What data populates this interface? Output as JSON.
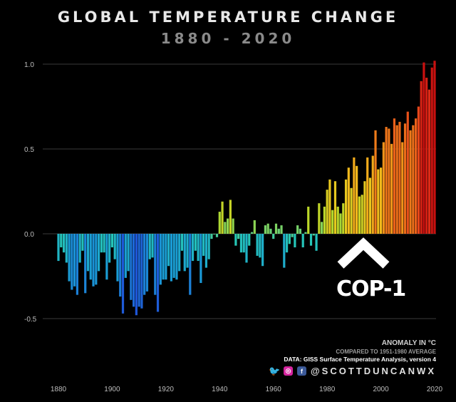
{
  "chart_data": {
    "type": "bar",
    "title": "GLOBAL TEMPERATURE CHANGE",
    "subtitle": "1880 - 2020",
    "y_ticks": [
      "1.0",
      "0.5",
      "0.0",
      "-0.5"
    ],
    "y_tick_values": [
      1.0,
      0.5,
      0.0,
      -0.5
    ],
    "x_ticks": [
      "1880",
      "1900",
      "1920",
      "1940",
      "1960",
      "1980",
      "2000",
      "2020"
    ],
    "x_tick_values": [
      1880,
      1900,
      1920,
      1940,
      1960,
      1980,
      2000,
      2020
    ],
    "ylim": [
      -0.7,
      1.2
    ],
    "grid": true,
    "color_scale": [
      "#1f4fd8",
      "#1a9ad6",
      "#25c7b8",
      "#b6d92a",
      "#f2c31c",
      "#f08a1a",
      "#e5381a",
      "#c8100f"
    ],
    "series": [
      {
        "years": [
          1880,
          1881,
          1882,
          1883,
          1884,
          1885,
          1886,
          1887,
          1888,
          1889,
          1890,
          1891,
          1892,
          1893,
          1894,
          1895,
          1896,
          1897,
          1898,
          1899,
          1900,
          1901,
          1902,
          1903,
          1904,
          1905,
          1906,
          1907,
          1908,
          1909,
          1910,
          1911,
          1912,
          1913,
          1914,
          1915,
          1916,
          1917,
          1918,
          1919,
          1920,
          1921,
          1922,
          1923,
          1924,
          1925,
          1926,
          1927,
          1928,
          1929,
          1930,
          1931,
          1932,
          1933,
          1934,
          1935,
          1936,
          1937,
          1938,
          1939,
          1940,
          1941,
          1942,
          1943,
          1944,
          1945,
          1946,
          1947,
          1948,
          1949,
          1950,
          1951,
          1952,
          1953,
          1954,
          1955,
          1956,
          1957,
          1958,
          1959,
          1960,
          1961,
          1962,
          1963,
          1964,
          1965,
          1966,
          1967,
          1968,
          1969,
          1970,
          1971,
          1972,
          1973,
          1974,
          1975,
          1976,
          1977,
          1978,
          1979,
          1980,
          1981,
          1982,
          1983,
          1984,
          1985,
          1986,
          1987,
          1988,
          1989,
          1990,
          1991,
          1992,
          1993,
          1994,
          1995,
          1996,
          1997,
          1998,
          1999,
          2000,
          2001,
          2002,
          2003,
          2004,
          2005,
          2006,
          2007,
          2008,
          2009,
          2010,
          2011,
          2012,
          2013,
          2014,
          2015,
          2016,
          2017,
          2018,
          2019,
          2020
        ],
        "values": [
          -0.16,
          -0.08,
          -0.11,
          -0.17,
          -0.28,
          -0.33,
          -0.31,
          -0.36,
          -0.17,
          -0.1,
          -0.35,
          -0.22,
          -0.27,
          -0.31,
          -0.3,
          -0.22,
          -0.11,
          -0.11,
          -0.27,
          -0.17,
          -0.08,
          -0.15,
          -0.28,
          -0.37,
          -0.47,
          -0.26,
          -0.22,
          -0.39,
          -0.43,
          -0.48,
          -0.43,
          -0.44,
          -0.36,
          -0.34,
          -0.15,
          -0.14,
          -0.36,
          -0.46,
          -0.3,
          -0.27,
          -0.27,
          -0.19,
          -0.28,
          -0.26,
          -0.27,
          -0.22,
          -0.1,
          -0.22,
          -0.2,
          -0.36,
          -0.16,
          -0.1,
          -0.16,
          -0.29,
          -0.13,
          -0.2,
          -0.15,
          -0.03,
          -0.0,
          -0.02,
          0.13,
          0.19,
          0.07,
          0.09,
          0.2,
          0.09,
          -0.07,
          -0.03,
          -0.11,
          -0.11,
          -0.17,
          -0.07,
          0.01,
          0.08,
          -0.13,
          -0.14,
          -0.19,
          0.05,
          0.06,
          0.03,
          -0.03,
          0.06,
          0.03,
          0.05,
          -0.2,
          -0.11,
          -0.06,
          -0.02,
          -0.08,
          0.05,
          0.03,
          -0.08,
          0.01,
          0.16,
          -0.07,
          -0.01,
          -0.1,
          0.18,
          0.07,
          0.16,
          0.26,
          0.32,
          0.14,
          0.31,
          0.16,
          0.12,
          0.18,
          0.32,
          0.39,
          0.27,
          0.45,
          0.4,
          0.22,
          0.23,
          0.31,
          0.45,
          0.33,
          0.46,
          0.61,
          0.38,
          0.39,
          0.54,
          0.63,
          0.62,
          0.53,
          0.68,
          0.64,
          0.66,
          0.54,
          0.65,
          0.72,
          0.61,
          0.64,
          0.68,
          0.75,
          0.9,
          1.01,
          0.92,
          0.85,
          0.98,
          1.02
        ]
      }
    ]
  },
  "annotation": {
    "label": "COP-1"
  },
  "credits": {
    "line1": "ANOMALY IN °C",
    "line2": "COMPARED TO 1951-1980 AVERAGE",
    "line3": "DATA: GISS Surface Temperature Analysis, version 4",
    "handle": "@SCOTTDUNCANWX",
    "twitter_icon_color": "#1da1f2",
    "instagram_icon_color": "#d6249f",
    "facebook_icon_color": "#3b5998"
  }
}
